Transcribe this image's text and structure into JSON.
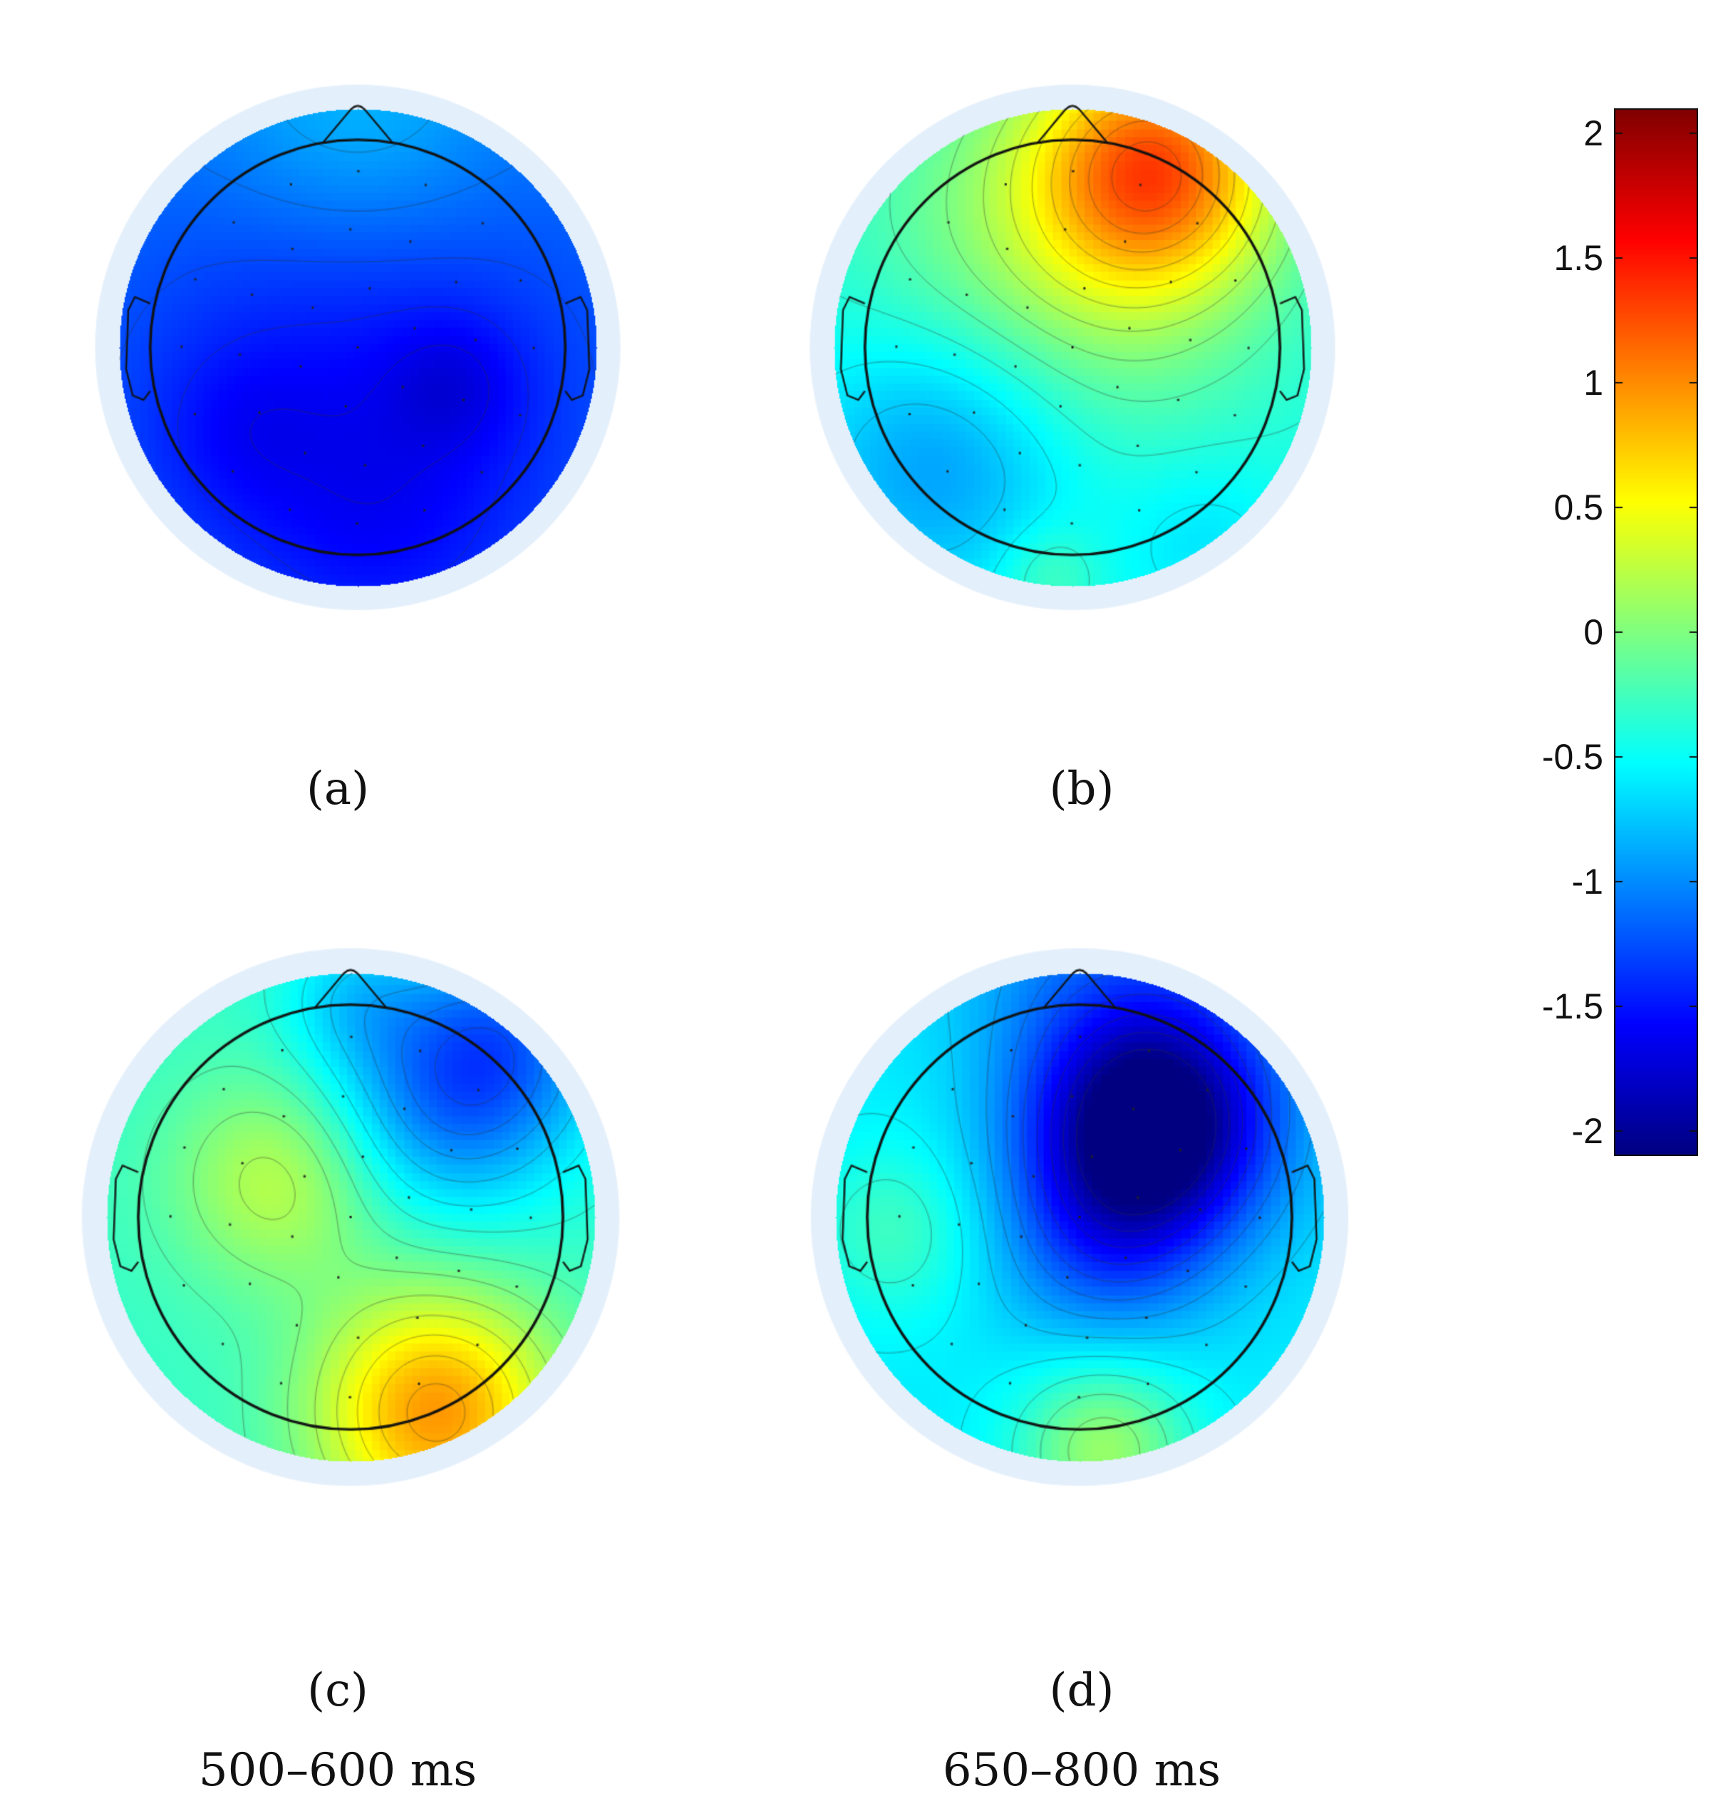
{
  "panels": [
    {
      "id": "a",
      "label": "(a)",
      "time_window": "",
      "field": {
        "base": -1.05,
        "blobs": [
          [
            0.0,
            -0.95,
            0.45,
            0.35
          ],
          [
            0.0,
            0.25,
            0.8,
            -0.5
          ],
          [
            0.4,
            0.15,
            0.2,
            -0.25
          ],
          [
            -0.5,
            0.35,
            0.25,
            -0.15
          ],
          [
            0.1,
            0.75,
            0.35,
            -0.15
          ]
        ]
      }
    },
    {
      "id": "b",
      "label": "(b)",
      "time_window": "",
      "field": {
        "base": -0.45,
        "blobs": [
          [
            0.35,
            -0.75,
            0.35,
            1.35
          ],
          [
            0.0,
            -0.45,
            0.6,
            0.6
          ],
          [
            -0.55,
            0.45,
            0.4,
            -0.55
          ],
          [
            0.55,
            0.8,
            0.25,
            -0.2
          ],
          [
            -0.1,
            0.95,
            0.15,
            0.25
          ]
        ]
      }
    },
    {
      "id": "c",
      "label": "(c)",
      "time_window": "500–600 ms",
      "field": {
        "base": -0.3,
        "blobs": [
          [
            -0.3,
            -0.15,
            0.3,
            0.55
          ],
          [
            0.35,
            0.8,
            0.35,
            1.25
          ],
          [
            0.4,
            -0.5,
            0.35,
            -0.75
          ],
          [
            0.65,
            -0.75,
            0.3,
            -0.5
          ],
          [
            0.0,
            -0.9,
            0.2,
            -0.3
          ]
        ]
      }
    },
    {
      "id": "d",
      "label": "(d)",
      "time_window": "650–800 ms",
      "field": {
        "base": -0.6,
        "blobs": [
          [
            0.3,
            -0.35,
            0.32,
            -1.4
          ],
          [
            0.2,
            -0.75,
            0.5,
            -0.6
          ],
          [
            0.1,
            0.1,
            0.3,
            -0.5
          ],
          [
            0.1,
            0.95,
            0.25,
            0.7
          ],
          [
            -0.75,
            0.05,
            0.25,
            0.35
          ],
          [
            -0.5,
            -0.6,
            0.3,
            0.1
          ]
        ]
      }
    }
  ],
  "colorbar": {
    "min": -2.1,
    "max": 2.1,
    "ticks": [
      {
        "value": 2,
        "label": "2"
      },
      {
        "value": 1.5,
        "label": "1.5"
      },
      {
        "value": 1,
        "label": "1"
      },
      {
        "value": 0.5,
        "label": "0.5"
      },
      {
        "value": 0,
        "label": "0"
      },
      {
        "value": -0.5,
        "label": "-0.5"
      },
      {
        "value": -1,
        "label": "-1"
      },
      {
        "value": -1.5,
        "label": "-1.5"
      },
      {
        "value": -2,
        "label": "-2"
      }
    ],
    "colormap": "jet"
  },
  "colors": {
    "outline": "#111111",
    "halo": "#e3effb",
    "contour": "#333333"
  }
}
